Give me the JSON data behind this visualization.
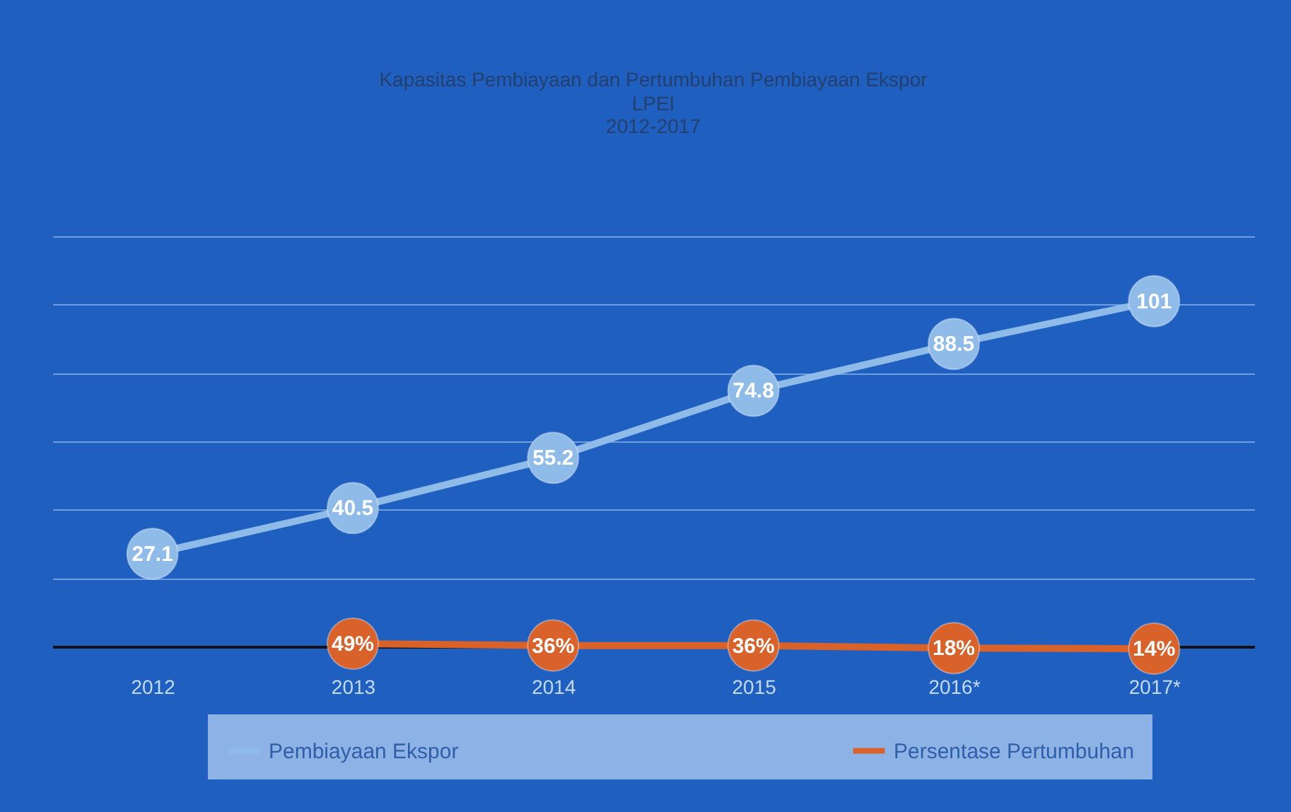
{
  "chart_data": {
    "type": "line",
    "title": "Kapasitas Pembiayaan dan Pertumbuhan Pembiayaan Ekspor",
    "subtitle": "LPEI\n2012-2017",
    "categories": [
      "2012",
      "2013",
      "2014",
      "2015",
      "2016*",
      "2017*"
    ],
    "series": [
      {
        "name": "Pembiayaan Ekspor",
        "color": "#8fbbe8",
        "values": [
          27.1,
          40.5,
          55.2,
          74.8,
          88.5,
          101
        ],
        "value_labels": [
          "27.1",
          "40.5",
          "55.2",
          "74.8",
          "88.5",
          "101"
        ]
      },
      {
        "name": "Persentase Pertumbuhan",
        "color": "#d8622a",
        "axis": "y2",
        "values": [
          null,
          49,
          36,
          36,
          18,
          14
        ],
        "value_labels": [
          null,
          "49%",
          "36%",
          "36%",
          "18%",
          "14%"
        ]
      }
    ],
    "ylim": [
      0,
      120
    ],
    "yticks": [
      {
        "value": 0,
        "label": null
      },
      {
        "value": 20,
        "label": null
      },
      {
        "value": 40,
        "label": null
      },
      {
        "value": 60,
        "label": null
      },
      {
        "value": 80,
        "label": null
      },
      {
        "value": 100,
        "label": null
      },
      {
        "value": 120,
        "label": null
      }
    ],
    "grid": "y",
    "marker": "circle",
    "line_style": "solid",
    "legend": "bottom"
  }
}
